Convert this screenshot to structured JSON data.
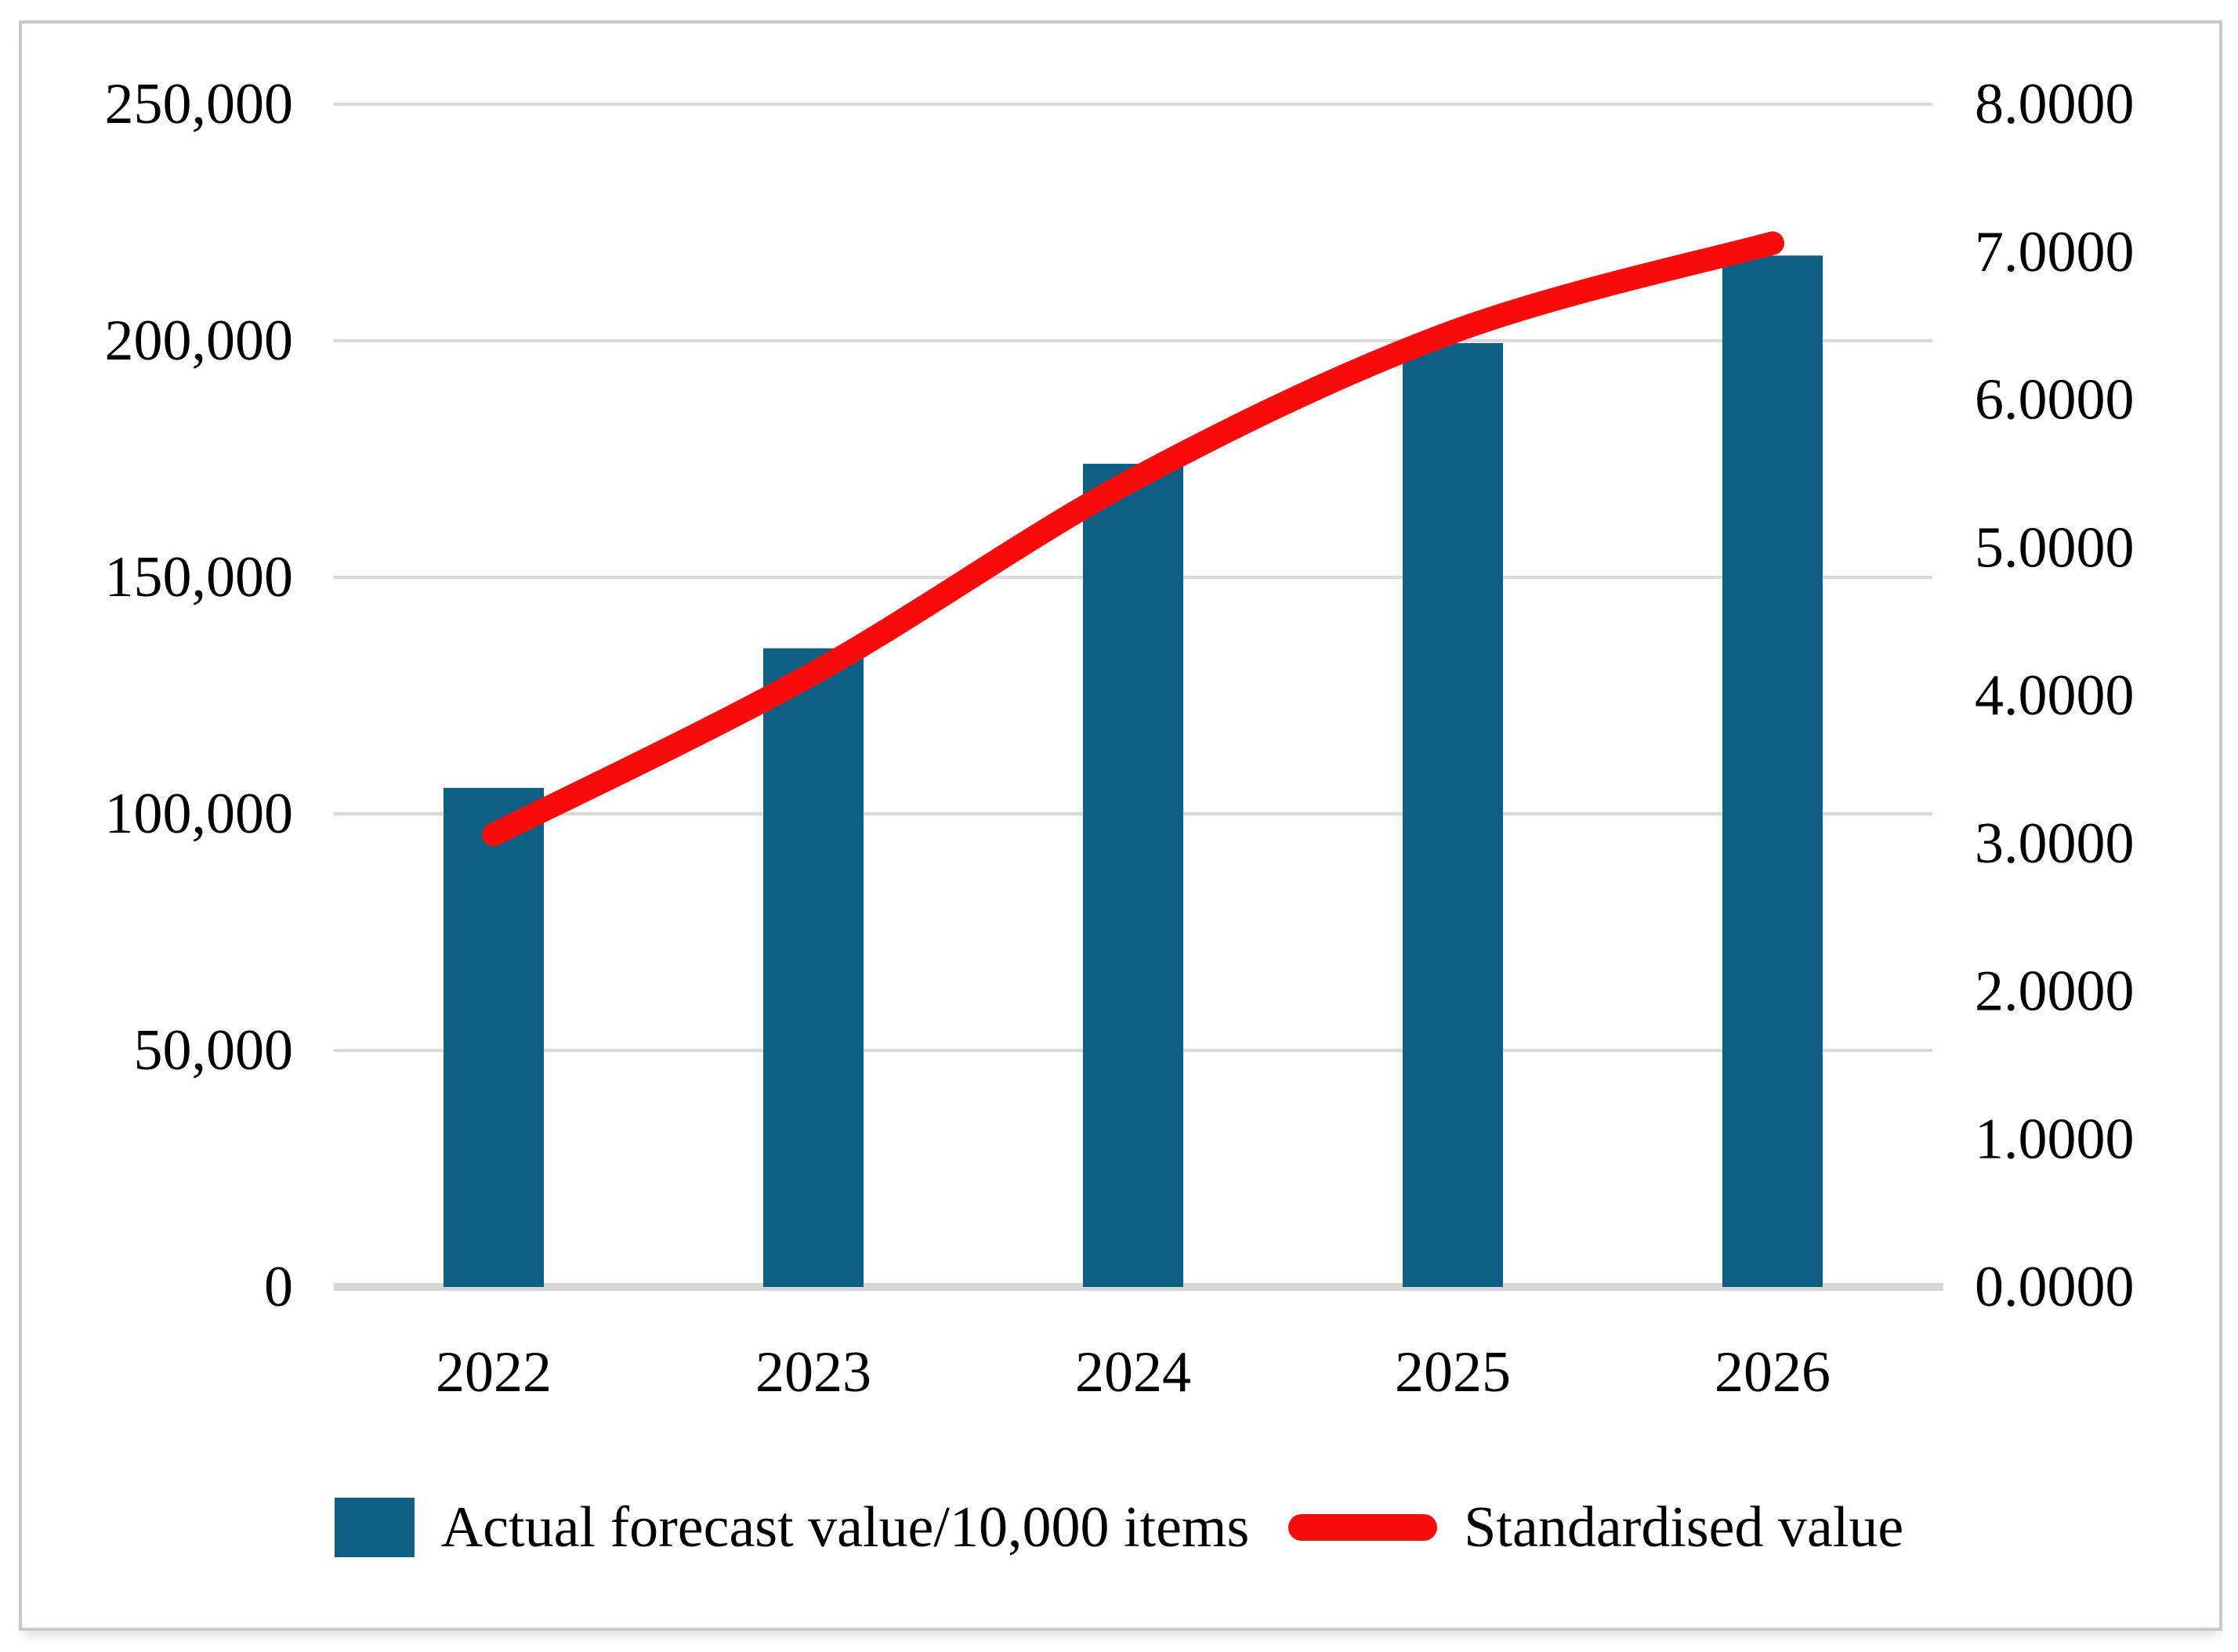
{
  "chart_data": {
    "type": "combo",
    "title": "",
    "categories": [
      "2022",
      "2023",
      "2024",
      "2025",
      "2026"
    ],
    "series": [
      {
        "name": "Actual forecast value/10,000 items",
        "type": "bar",
        "axis": "left",
        "color": "#0E5F84",
        "values": [
          105500,
          135000,
          174000,
          199500,
          218000
        ]
      },
      {
        "name": "Standardised value",
        "type": "line",
        "axis": "right",
        "color": "#F90B0B",
        "values": [
          3.06,
          4.15,
          5.46,
          6.46,
          7.06
        ]
      }
    ],
    "left_axis": {
      "min": 0,
      "max": 250000,
      "step": 50000,
      "tick_labels": [
        "0",
        "50,000",
        "100,000",
        "150,000",
        "200,000",
        "250,000"
      ]
    },
    "right_axis": {
      "min": 0,
      "max": 8,
      "step": 1,
      "tick_labels": [
        "0.0000",
        "1.0000",
        "2.0000",
        "3.0000",
        "4.0000",
        "5.0000",
        "6.0000",
        "7.0000",
        "8.0000"
      ]
    },
    "grid": true,
    "legend_position": "bottom"
  },
  "legend": {
    "items": [
      {
        "label": "Actual forecast value/10,000 items",
        "swatch": "bar"
      },
      {
        "label": "Standardised value",
        "swatch": "line"
      }
    ]
  },
  "colors": {
    "bar": "#0E5F84",
    "line": "#F90B0B",
    "grid": "#D9D9D9",
    "baseline": "#D6D6D6",
    "text": "#000000",
    "frame": "#C9C9C9"
  }
}
